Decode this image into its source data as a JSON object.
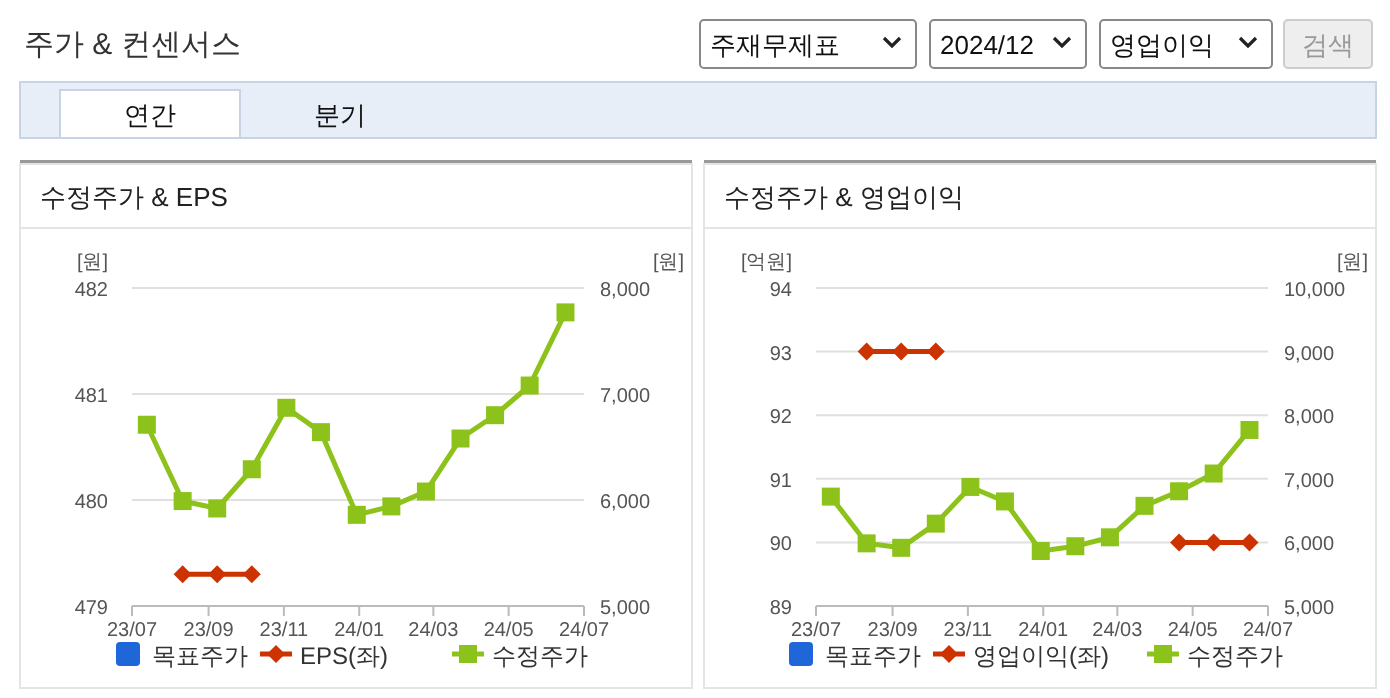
{
  "chart_data": [
    {
      "type": "line",
      "title": "수정주가 & EPS",
      "annotations": [
        "주가 & 컨센서스",
        "주재무제표",
        "2024/12",
        "영업이익",
        "검색",
        "연간",
        "분기"
      ],
      "ylabel": "[원]",
      "y2label": "[원]",
      "x": [
        "2023-07-13",
        "2023-08-11",
        "2023-09-08",
        "2023-10-06",
        "2023-11-03",
        "2023-12-01",
        "2023-12-30",
        "2024-01-27",
        "2024-02-24",
        "2024-03-23",
        "2024-04-20",
        "2024-05-18",
        "2024-06-16"
      ],
      "xlim": [
        "2023-07-01",
        "2024-07-01"
      ],
      "xticks": [
        {
          "value": "2023-07-01",
          "label": "23/07"
        },
        {
          "value": "2023-09-01",
          "label": "23/09"
        },
        {
          "value": "2023-11-01",
          "label": "23/11"
        },
        {
          "value": "2024-01-01",
          "label": "24/01"
        },
        {
          "value": "2024-03-01",
          "label": "24/03"
        },
        {
          "value": "2024-05-01",
          "label": "24/05"
        },
        {
          "value": "2024-07-01",
          "label": "24/07"
        }
      ],
      "ylim": [
        479,
        482
      ],
      "yticks": [
        479,
        480,
        481,
        482
      ],
      "y2lim": [
        5000,
        8000
      ],
      "y2ticks": [
        {
          "value": 5000,
          "label": "5,000"
        },
        {
          "value": 6000,
          "label": "6,000"
        },
        {
          "value": 7000,
          "label": "7,000"
        },
        {
          "value": 8000,
          "label": "8,000"
        }
      ],
      "grid": "y",
      "legend": "bottom",
      "line_style": "solid",
      "series": [
        {
          "name": "목표주가",
          "color": "#1f66d9",
          "marker": "square",
          "values": [
            null,
            null,
            null,
            null,
            null,
            null,
            null,
            null,
            null,
            null,
            null,
            null,
            null
          ]
        },
        {
          "name": "EPS(좌)",
          "color": "#cc3300",
          "marker": "diamond",
          "values": [
            null,
            479.3,
            479.3,
            479.3,
            null,
            null,
            null,
            null,
            null,
            null,
            null,
            null,
            null
          ]
        },
        {
          "name": "수정주가",
          "color": "#8cc21a",
          "marker": "square",
          "axis": "y2",
          "values": [
            6710,
            5990,
            5920,
            6290,
            6870,
            6640,
            5860,
            5940,
            6080,
            6580,
            6800,
            7080,
            7770
          ]
        }
      ]
    },
    {
      "type": "line",
      "title": "수정주가 & 영업이익",
      "ylabel": "[억원]",
      "y2label": "[원]",
      "x": [
        "2023-07-13",
        "2023-08-11",
        "2023-09-08",
        "2023-10-06",
        "2023-11-03",
        "2023-12-01",
        "2023-12-30",
        "2024-01-27",
        "2024-02-24",
        "2024-03-23",
        "2024-04-20",
        "2024-05-18",
        "2024-06-16"
      ],
      "xlim": [
        "2023-07-01",
        "2024-07-01"
      ],
      "xticks": [
        {
          "value": "2023-07-01",
          "label": "23/07"
        },
        {
          "value": "2023-09-01",
          "label": "23/09"
        },
        {
          "value": "2023-11-01",
          "label": "23/11"
        },
        {
          "value": "2024-01-01",
          "label": "24/01"
        },
        {
          "value": "2024-03-01",
          "label": "24/03"
        },
        {
          "value": "2024-05-01",
          "label": "24/05"
        },
        {
          "value": "2024-07-01",
          "label": "24/07"
        }
      ],
      "ylim": [
        89,
        94
      ],
      "yticks": [
        89,
        90,
        91,
        92,
        93,
        94
      ],
      "y2lim": [
        5000,
        10000
      ],
      "y2ticks": [
        {
          "value": 5000,
          "label": "5,000"
        },
        {
          "value": 6000,
          "label": "6,000"
        },
        {
          "value": 7000,
          "label": "7,000"
        },
        {
          "value": 8000,
          "label": "8,000"
        },
        {
          "value": 9000,
          "label": "9,000"
        },
        {
          "value": 10000,
          "label": "10,000"
        }
      ],
      "grid": "y",
      "legend": "bottom",
      "line_style": "solid",
      "series": [
        {
          "name": "목표주가",
          "color": "#1f66d9",
          "marker": "square",
          "values": [
            null,
            null,
            null,
            null,
            null,
            null,
            null,
            null,
            null,
            null,
            null,
            null,
            null
          ]
        },
        {
          "name": "영업이익(좌)",
          "color": "#cc3300",
          "marker": "diamond",
          "values": [
            null,
            93,
            93,
            93,
            null,
            null,
            null,
            null,
            null,
            null,
            90,
            90,
            90
          ]
        },
        {
          "name": "수정주가",
          "color": "#8cc21a",
          "marker": "square",
          "axis": "y2",
          "values": [
            6720,
            5985,
            5915,
            6295,
            6872,
            6644,
            5865,
            5940,
            6080,
            6575,
            6804,
            7083,
            7768
          ]
        }
      ]
    }
  ]
}
